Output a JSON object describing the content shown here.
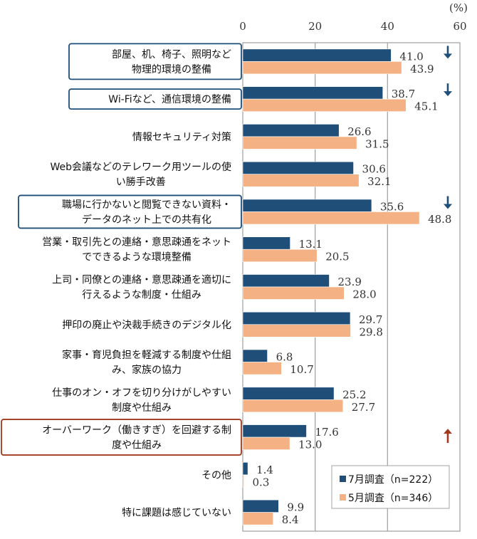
{
  "chart_data": {
    "type": "bar",
    "orientation": "horizontal",
    "title": "",
    "unit_label": "(%)",
    "xlabel": "",
    "ylabel": "",
    "xlim": [
      0,
      60
    ],
    "xticks": [
      0,
      20,
      40,
      60
    ],
    "grid": true,
    "legend_position": "bottom-right",
    "categories": [
      [
        "部屋、机、椅子、照明など",
        "物理的環境の整備"
      ],
      [
        "Wi-Fiなど、通信環境の整備"
      ],
      [
        "情報セキュリティ対策"
      ],
      [
        "Web会議などのテレワーク用ツールの使",
        "い勝手改善"
      ],
      [
        "職場に行かないと閲覧できない資料・",
        "データのネット上での共有化"
      ],
      [
        "営業・取引先との連絡・意思疎通をネット",
        "でできるような環境整備"
      ],
      [
        "上司・同僚との連絡・意思疎通を適切に",
        "行えるような制度・仕組み"
      ],
      [
        "押印の廃止や決裁手続きのデジタル化"
      ],
      [
        "家事・育児負担を軽減する制度や仕組",
        "み、家族の協力"
      ],
      [
        "仕事のオン・オフを切り分けがしやすい",
        "制度や仕組み"
      ],
      [
        "オーバーワーク（働きすぎ）を回避する制",
        "度や仕組み"
      ],
      [
        "その他"
      ],
      [
        "特に課題は感じていない"
      ]
    ],
    "series": [
      {
        "name": "7月調査（n=222）",
        "color": "#1F4E79",
        "values": [
          41.0,
          38.7,
          26.6,
          30.6,
          35.6,
          13.1,
          23.9,
          29.7,
          6.8,
          25.2,
          17.6,
          1.4,
          9.9
        ]
      },
      {
        "name": "5月調査（n=346）",
        "color": "#F4B183",
        "values": [
          43.9,
          45.1,
          31.5,
          32.1,
          48.8,
          20.5,
          28.0,
          29.8,
          10.7,
          27.7,
          13.0,
          0.3,
          8.4
        ]
      }
    ],
    "highlight_boxes": [
      {
        "category_index": 0,
        "color": "#1F4E79"
      },
      {
        "category_index": 1,
        "color": "#1F4E79"
      },
      {
        "category_index": 4,
        "color": "#1F4E79"
      },
      {
        "category_index": 10,
        "color": "#A0391E"
      }
    ],
    "trend_arrows": [
      {
        "category_index": 0,
        "direction": "down",
        "color": "#1F4E79"
      },
      {
        "category_index": 1,
        "direction": "down",
        "color": "#1F4E79"
      },
      {
        "category_index": 4,
        "direction": "down",
        "color": "#1F4E79"
      },
      {
        "category_index": 10,
        "direction": "up",
        "color": "#A0391E"
      }
    ]
  }
}
